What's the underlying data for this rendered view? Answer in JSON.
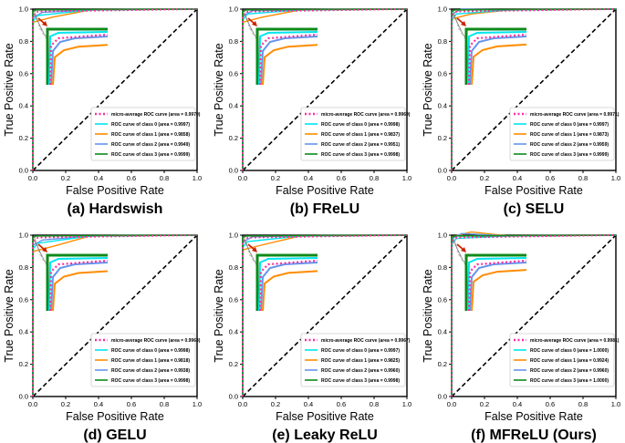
{
  "figure": {
    "axes": {
      "xlabel": "False Positive Rate",
      "ylabel": "True Positive Rate",
      "xlim": [
        0.0,
        1.0
      ],
      "ylim": [
        0.0,
        1.0
      ],
      "xticks": [
        "0.0",
        "0.2",
        "0.4",
        "0.6",
        "0.8",
        "1.0"
      ],
      "yticks": [
        "0.0",
        "0.2",
        "0.4",
        "0.6",
        "0.8",
        "1.0"
      ]
    },
    "legend_template": {
      "micro": "micro-average ROC curve (area = {v})",
      "cls": "ROC curve of class {c} (area = {v})"
    },
    "colors": {
      "micro": "#ff2fa0",
      "class0": "#00e5ee",
      "class1": "#ff8c00",
      "class2": "#6495ed",
      "class3": "#0d8a1a",
      "arrow": "#cc2200",
      "diag": "#000000"
    }
  },
  "chart_data": [
    {
      "type": "line",
      "panel": "(a) Hardswish",
      "xlabel": "False Positive Rate",
      "ylabel": "True Positive Rate",
      "xlim": [
        0,
        1
      ],
      "ylim": [
        0,
        1
      ],
      "legend": "lower-right",
      "series": [
        {
          "name": "micro-average ROC curve",
          "area": "0.9970"
        },
        {
          "name": "ROC curve of class 0",
          "area": "0.9997"
        },
        {
          "name": "ROC curve of class 1",
          "area": "0.9858"
        },
        {
          "name": "ROC curve of class 2",
          "area": "0.9949"
        },
        {
          "name": "ROC curve of class 3",
          "area": "0.9999"
        }
      ]
    },
    {
      "type": "line",
      "panel": "(b) FReLU",
      "xlabel": "False Positive Rate",
      "ylabel": "True Positive Rate",
      "xlim": [
        0,
        1
      ],
      "ylim": [
        0,
        1
      ],
      "legend": "lower-right",
      "series": [
        {
          "name": "micro-average ROC curve",
          "area": "0.9969"
        },
        {
          "name": "ROC curve of class 0",
          "area": "0.9998"
        },
        {
          "name": "ROC curve of class 1",
          "area": "0.9837"
        },
        {
          "name": "ROC curve of class 2",
          "area": "0.9951"
        },
        {
          "name": "ROC curve of class 3",
          "area": "0.9998"
        }
      ]
    },
    {
      "type": "line",
      "panel": "(c) SELU",
      "xlabel": "False Positive Rate",
      "ylabel": "True Positive Rate",
      "xlim": [
        0,
        1
      ],
      "ylim": [
        0,
        1
      ],
      "legend": "lower-right",
      "series": [
        {
          "name": "micro-average ROC curve",
          "area": "0.9971"
        },
        {
          "name": "ROC curve of class 0",
          "area": "0.9997"
        },
        {
          "name": "ROC curve of class 1",
          "area": "0.9873"
        },
        {
          "name": "ROC curve of class 2",
          "area": "0.9959"
        },
        {
          "name": "ROC curve of class 3",
          "area": "0.9999"
        }
      ]
    },
    {
      "type": "line",
      "panel": "(d) GELU",
      "xlabel": "False Positive Rate",
      "ylabel": "True Positive Rate",
      "xlim": [
        0,
        1
      ],
      "ylim": [
        0,
        1
      ],
      "legend": "lower-right",
      "series": [
        {
          "name": "micro-average ROC curve",
          "area": "0.9963"
        },
        {
          "name": "ROC curve of class 0",
          "area": "0.9998"
        },
        {
          "name": "ROC curve of class 1",
          "area": "0.9818"
        },
        {
          "name": "ROC curve of class 2",
          "area": "0.9938"
        },
        {
          "name": "ROC curve of class 3",
          "area": "0.9998"
        }
      ]
    },
    {
      "type": "line",
      "panel": "(e) Leaky ReLU",
      "xlabel": "False Positive Rate",
      "ylabel": "True Positive Rate",
      "xlim": [
        0,
        1
      ],
      "ylim": [
        0,
        1
      ],
      "legend": "lower-right",
      "series": [
        {
          "name": "micro-average ROC curve",
          "area": "0.9967"
        },
        {
          "name": "ROC curve of class 0",
          "area": "0.9997"
        },
        {
          "name": "ROC curve of class 1",
          "area": "0.9825"
        },
        {
          "name": "ROC curve of class 2",
          "area": "0.9960"
        },
        {
          "name": "ROC curve of class 3",
          "area": "0.9998"
        }
      ]
    },
    {
      "type": "line",
      "panel": "(f) MFReLU (Ours)",
      "xlabel": "False Positive Rate",
      "ylabel": "True Positive Rate",
      "xlim": [
        0,
        1
      ],
      "ylim": [
        0,
        1
      ],
      "legend": "lower-right",
      "series": [
        {
          "name": "micro-average ROC curve",
          "area": "0.9981"
        },
        {
          "name": "ROC curve of class 0",
          "area": "1.0000"
        },
        {
          "name": "ROC curve of class 1",
          "area": "0.9924"
        },
        {
          "name": "ROC curve of class 2",
          "area": "0.9960"
        },
        {
          "name": "ROC curve of class 3",
          "area": "1.0000"
        }
      ]
    }
  ]
}
